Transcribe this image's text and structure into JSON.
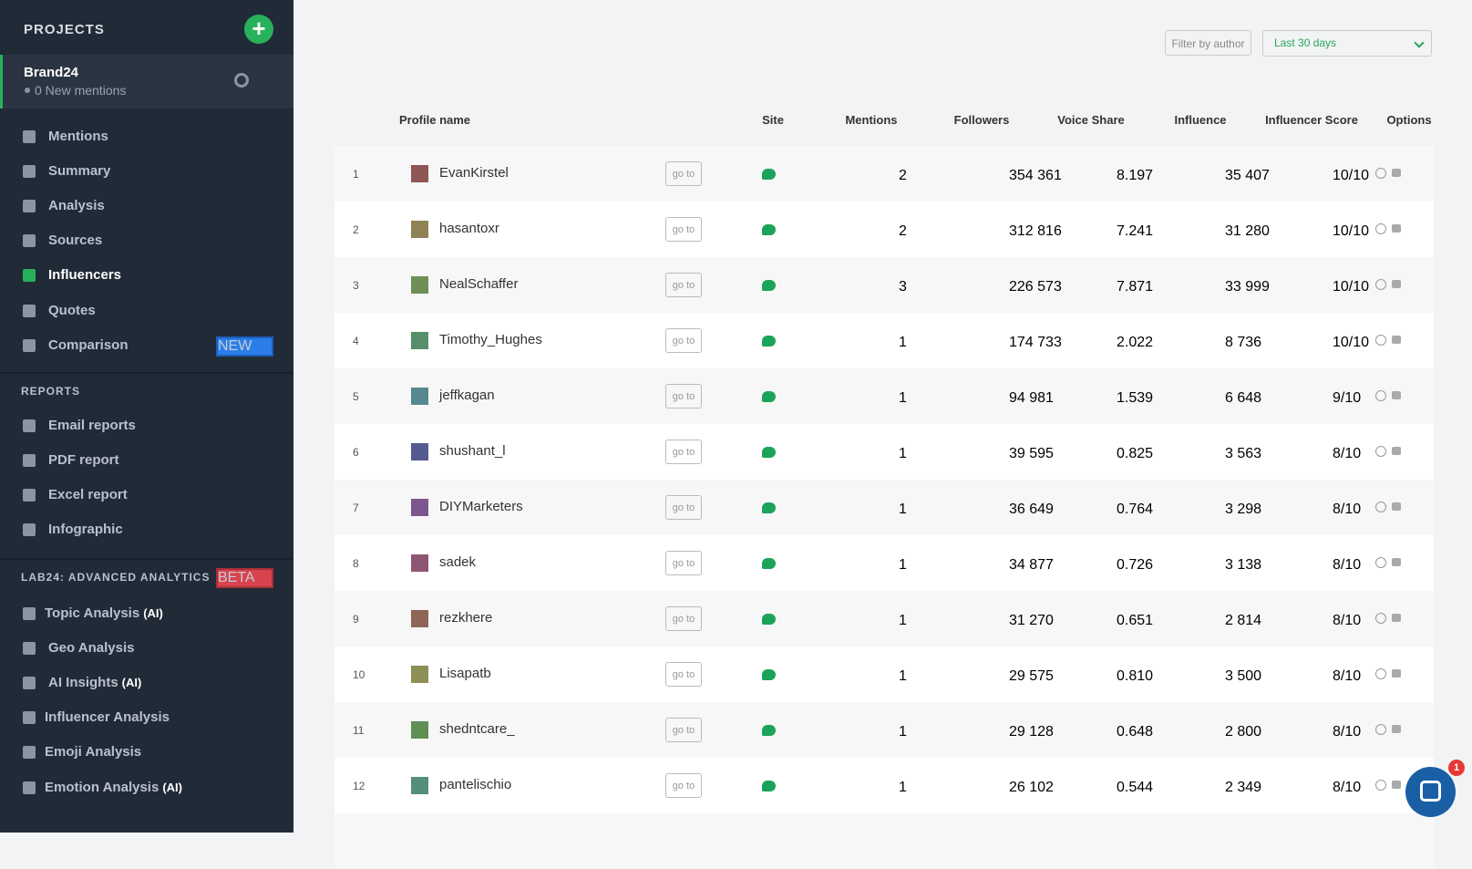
{
  "sidebar": {
    "projects_title": "PROJECTS",
    "project": {
      "name": "Brand24",
      "mentions": "0 New mentions"
    },
    "nav": [
      {
        "label": "Mentions"
      },
      {
        "label": "Summary"
      },
      {
        "label": "Analysis"
      },
      {
        "label": "Sources"
      },
      {
        "label": "Influencers"
      },
      {
        "label": "Quotes"
      },
      {
        "label": "Comparison",
        "badge": "NEW"
      }
    ],
    "reports_title": "REPORTS",
    "reports": [
      {
        "label": "Email reports"
      },
      {
        "label": "PDF report"
      },
      {
        "label": "Excel report"
      },
      {
        "label": "Infographic"
      }
    ],
    "lab_title": "LAB24: ADVANCED ANALYTICS",
    "lab_badge": "BETA",
    "lab": [
      {
        "label": "Topic Analysis",
        "tag": "(AI)"
      },
      {
        "label": "Geo Analysis"
      },
      {
        "label": "AI Insights",
        "tag": "(AI)"
      },
      {
        "label": "Influencer Analysis"
      },
      {
        "label": "Emoji Analysis"
      },
      {
        "label": "Emotion Analysis",
        "tag": "(AI)"
      }
    ]
  },
  "filters": {
    "author": "Filter by author",
    "period": "Last 30 days"
  },
  "table": {
    "headers": [
      "Profile name",
      "Site",
      "Mentions",
      "Followers",
      "Voice Share",
      "Influence",
      "Influencer Score",
      "Options"
    ],
    "go_to": "go to",
    "rows": [
      [
        "1",
        "EvanKirstel",
        "2",
        "354 361",
        "8.197",
        "35 407",
        "10/10"
      ],
      [
        "2",
        "hasantoxr",
        "2",
        "312 816",
        "7.241",
        "31 280",
        "10/10"
      ],
      [
        "3",
        "NealSchaffer",
        "3",
        "226 573",
        "7.871",
        "33 999",
        "10/10"
      ],
      [
        "4",
        "Timothy_Hughes",
        "1",
        "174 733",
        "2.022",
        "8 736",
        "10/10"
      ],
      [
        "5",
        "jeffkagan",
        "1",
        "94 981",
        "1.539",
        "6 648",
        "9/10"
      ],
      [
        "6",
        "shushant_l",
        "1",
        "39 595",
        "0.825",
        "3 563",
        "8/10"
      ],
      [
        "7",
        "DIYMarketers",
        "1",
        "36 649",
        "0.764",
        "3 298",
        "8/10"
      ],
      [
        "8",
        "sadek",
        "1",
        "34 877",
        "0.726",
        "3 138",
        "8/10"
      ],
      [
        "9",
        "rezkhere",
        "1",
        "31 270",
        "0.651",
        "2 814",
        "8/10"
      ],
      [
        "10",
        "Lisapatb",
        "1",
        "29 575",
        "0.810",
        "3 500",
        "8/10"
      ],
      [
        "11",
        "shedntcare_",
        "1",
        "29 128",
        "0.648",
        "2 800",
        "8/10"
      ],
      [
        "12",
        "pantelischio",
        "1",
        "26 102",
        "0.544",
        "2 349",
        "8/10"
      ]
    ]
  },
  "chat": {
    "badge": "1"
  }
}
